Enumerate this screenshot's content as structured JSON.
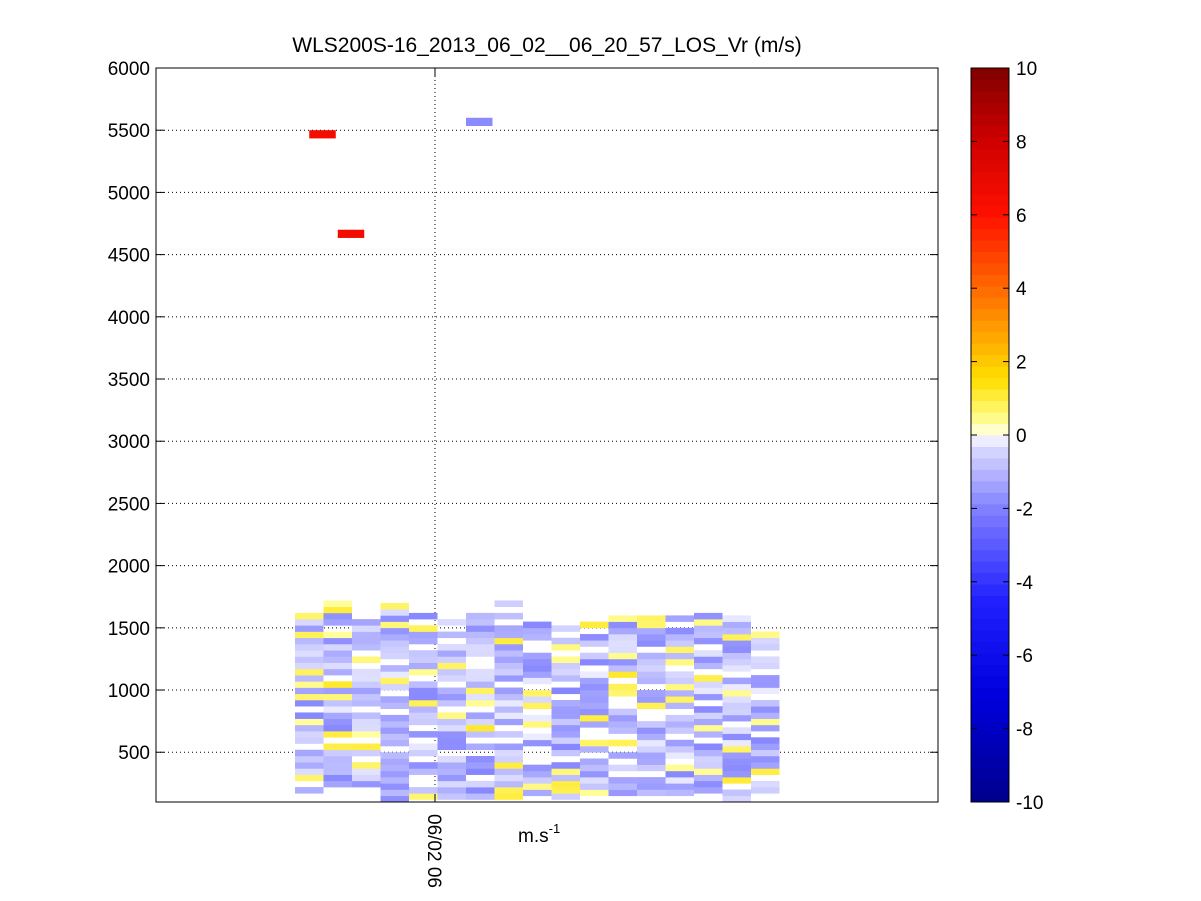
{
  "chart_data": {
    "type": "heatmap",
    "title": "WLS200S-16_2013_06_02__06_20_57_LOS_Vr (m/s)",
    "xlabel": "m.s",
    "xlabel_sup": "-1",
    "x_ticks": [
      "06/02 06"
    ],
    "ylim": [
      100,
      6000
    ],
    "y_ticks": [
      500,
      1000,
      1500,
      2000,
      2500,
      3000,
      3500,
      4000,
      4500,
      5000,
      5500,
      6000
    ],
    "grid": true,
    "colorbar": {
      "range": [
        -10,
        10
      ],
      "ticks": [
        -10,
        -8,
        -6,
        -4,
        -2,
        0,
        2,
        4,
        6,
        8,
        10
      ],
      "colors": [
        {
          "v": -10,
          "c": "#00008c"
        },
        {
          "v": -7,
          "c": "#0000e0"
        },
        {
          "v": -4.5,
          "c": "#2020ff"
        },
        {
          "v": -2,
          "c": "#8080ff"
        },
        {
          "v": -0.3,
          "c": "#dcdcff"
        },
        {
          "v": 0,
          "c": "#ffffff"
        },
        {
          "v": 0.3,
          "c": "#ffffa0"
        },
        {
          "v": 1.5,
          "c": "#ffe000"
        },
        {
          "v": 3.5,
          "c": "#ff8000"
        },
        {
          "v": 6,
          "c": "#ff1000"
        },
        {
          "v": 8,
          "c": "#d00000"
        },
        {
          "v": 10,
          "c": "#800000"
        }
      ]
    },
    "profiles": {
      "columns": 17,
      "altitude_step": 50,
      "tops": [
        1700,
        1760,
        1560,
        1670,
        1620,
        1620,
        1600,
        1740,
        1520,
        1520,
        1560,
        1600,
        1600,
        1560,
        1620,
        1640,
        1520
      ],
      "bottoms": [
        170,
        220,
        170,
        100,
        120,
        120,
        120,
        120,
        150,
        120,
        100,
        100,
        150,
        150,
        120,
        100,
        170
      ]
    },
    "isolated_cells": [
      {
        "column": 0.5,
        "altitude": 5450,
        "value": 6.5
      },
      {
        "column": 1.5,
        "altitude": 4650,
        "value": 6.5
      },
      {
        "column": 6,
        "altitude": 5550,
        "value": -1.8
      }
    ]
  }
}
